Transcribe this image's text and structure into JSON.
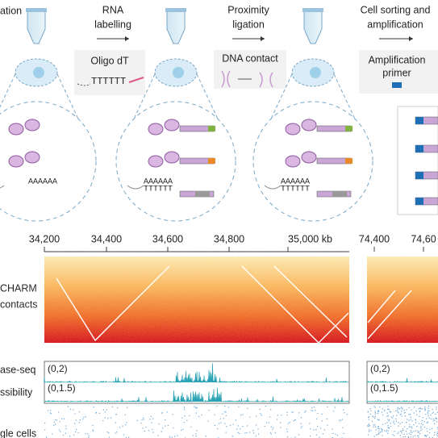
{
  "steps": [
    {
      "label": [
        "ation"
      ]
    },
    {
      "label": [
        "RNA",
        "labelling"
      ]
    },
    {
      "label": [
        "Proximity",
        "ligation"
      ]
    },
    {
      "label": [
        "Cell sorting and",
        "amplification"
      ]
    }
  ],
  "insets": {
    "oligo": {
      "title": "Oligo dT",
      "seq": "TTTTTT"
    },
    "dna": {
      "title": "DNA contact"
    },
    "primer": {
      "title": [
        "Amplification",
        "primer"
      ]
    }
  },
  "cells": [
    {
      "texts": [
        "AAAAAA"
      ]
    },
    {
      "texts": [
        "AAAAAA",
        "TTTTTT"
      ]
    },
    {
      "texts": [
        "AAAAAA",
        "TTTTTT"
      ]
    }
  ],
  "genome_axis": {
    "ticks": [
      "34,200",
      "34,400",
      "34,600",
      "34,800",
      "35,000 kb",
      "74,400",
      "74,60"
    ]
  },
  "row_labels": {
    "charm": [
      "CHARM",
      "contacts"
    ],
    "tracks": [
      "ase-seq",
      "ssibility"
    ],
    "cells": "gle cells"
  },
  "track_scales": [
    [
      "(0,2)",
      "(0,1.5)"
    ],
    [
      "(0,2)",
      "(0,1.5)"
    ]
  ]
}
